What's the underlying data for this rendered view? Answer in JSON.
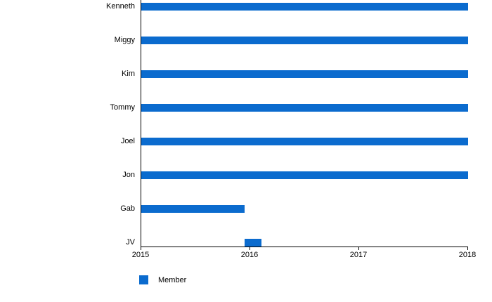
{
  "chart_data": {
    "type": "bar",
    "orientation": "horizontal",
    "title": "",
    "xlabel": "",
    "ylabel": "",
    "xlim": [
      2015,
      2018
    ],
    "x_ticks": [
      2015,
      2016,
      2017,
      2018
    ],
    "grid": false,
    "bar_color": "#0b6bce",
    "axis_color": "#000000",
    "text_color": "#000000",
    "categories": [
      "Kenneth",
      "Miggy",
      "Kim",
      "Tommy",
      "Joel",
      "Jon",
      "Gab",
      "JV"
    ],
    "bars": [
      {
        "label": "Kenneth",
        "start": 2015,
        "end": 2018
      },
      {
        "label": "Miggy",
        "start": 2015,
        "end": 2018
      },
      {
        "label": "Kim",
        "start": 2015,
        "end": 2018
      },
      {
        "label": "Tommy",
        "start": 2015,
        "end": 2018
      },
      {
        "label": "Joel",
        "start": 2015,
        "end": 2018
      },
      {
        "label": "Jon",
        "start": 2015,
        "end": 2018
      },
      {
        "label": "Gab",
        "start": 2015,
        "end": 2015.95
      },
      {
        "label": "JV",
        "start": 2015.95,
        "end": 2016.1
      }
    ],
    "legend": {
      "label": "Member",
      "position": "bottom-left",
      "color": "#0b6bce"
    }
  }
}
